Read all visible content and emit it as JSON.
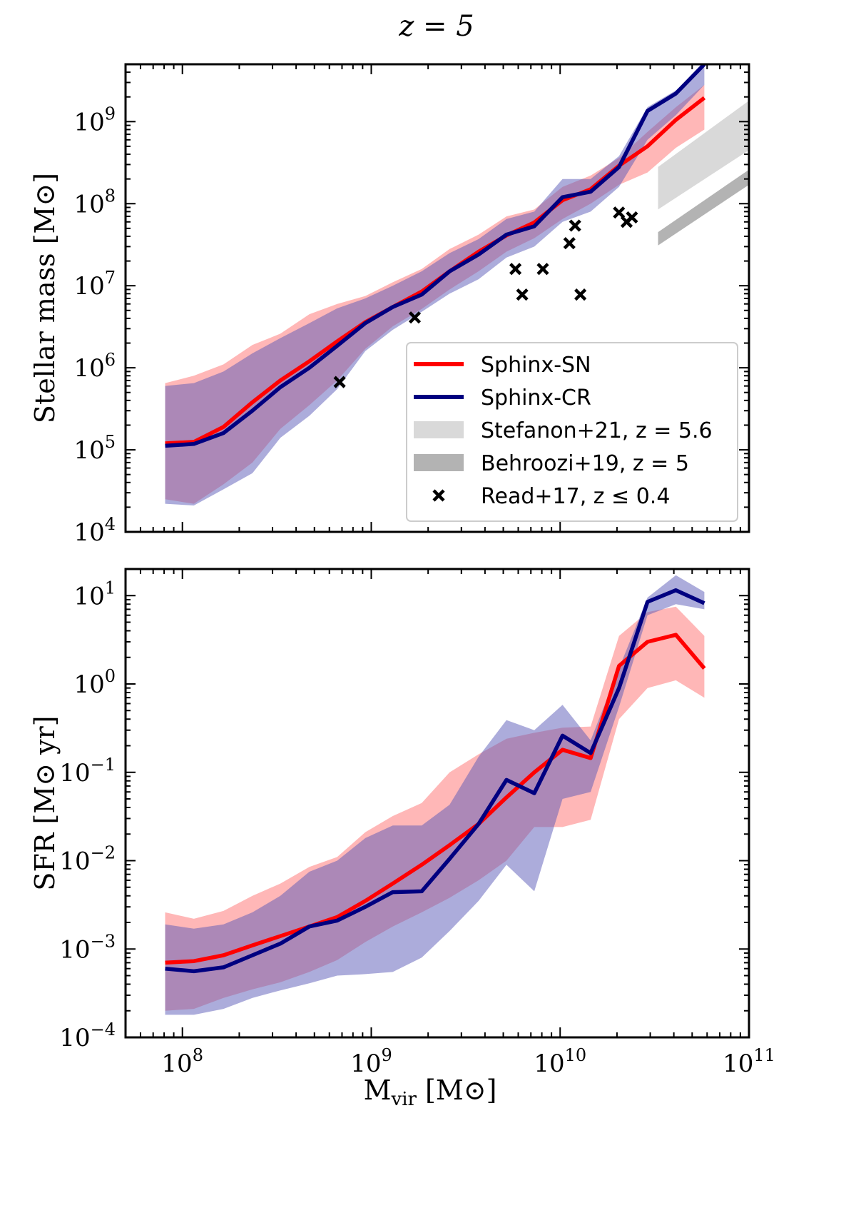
{
  "figure_title": "z = 5",
  "colors": {
    "sn": "#ff0000",
    "cr": "#000080",
    "sn_band": "#ff6f6f",
    "cr_band": "#5a5ab8",
    "stefanon": "#d9d9d9",
    "behroozi": "#b3b3b3",
    "read": "#000000"
  },
  "chart_data": [
    {
      "type": "line",
      "id": "stellar",
      "ylabel": "Stellar mass [M⊙]",
      "xlabel": "",
      "xscale": "log",
      "yscale": "log",
      "xlim": [
        50000000.0,
        100000000000.0
      ],
      "ylim": [
        10000.0,
        5000000000.0
      ],
      "xticks": [
        {
          "v": 100000000.0,
          "label": "10^8"
        },
        {
          "v": 1000000000.0,
          "label": "10^9"
        },
        {
          "v": 10000000000.0,
          "label": "10^10"
        },
        {
          "v": 100000000000.0,
          "label": "10^11"
        }
      ],
      "yticks": [
        {
          "v": 10000.0,
          "label": "10^4"
        },
        {
          "v": 100000.0,
          "label": "10^5"
        },
        {
          "v": 1000000.0,
          "label": "10^6"
        },
        {
          "v": 10000000.0,
          "label": "10^7"
        },
        {
          "v": 100000000.0,
          "label": "10^8"
        },
        {
          "v": 1000000000.0,
          "label": "10^9"
        }
      ],
      "series": [
        {
          "name": "Sphinx-SN",
          "color_key": "sn",
          "band_key": "sn_band",
          "x": [
            81000000.0,
            115000000.0,
            165000000.0,
            235000000.0,
            330000000.0,
            470000000.0,
            660000000.0,
            930000000.0,
            1300000000.0,
            1850000000.0,
            2600000000.0,
            3700000000.0,
            5200000000.0,
            7300000000.0,
            10300000000.0,
            14500000000.0,
            20500000000.0,
            29000000000.0,
            41000000000.0,
            58000000000.0
          ],
          "y": [
            120000.0,
            125000.0,
            190000.0,
            380000.0,
            700000.0,
            1200000.0,
            2100000.0,
            3600000.0,
            5500000.0,
            8500000.0,
            15000000.0,
            26000000.0,
            41000000.0,
            59000000.0,
            110000000.0,
            150000000.0,
            290000000.0,
            500000000.0,
            1050000000.0,
            1950000000.0
          ],
          "lo": [
            25000.0,
            22000.0,
            38000.0,
            70000.0,
            180000.0,
            350000.0,
            700000.0,
            1700000.0,
            3200000.0,
            5200000.0,
            9000000.0,
            15000000.0,
            26000000.0,
            38000000.0,
            65000000.0,
            100000000.0,
            170000000.0,
            240000000.0,
            480000000.0,
            800000000.0
          ],
          "hi": [
            650000.0,
            800000.0,
            1100000.0,
            1900000.0,
            2600000.0,
            4500000.0,
            6000000.0,
            7500000.0,
            11000000.0,
            16000000.0,
            28000000.0,
            42000000.0,
            70000000.0,
            85000000.0,
            160000000.0,
            220000000.0,
            360000000.0,
            750000000.0,
            1500000000.0,
            2800000000.0
          ]
        },
        {
          "name": "Sphinx-CR",
          "color_key": "cr",
          "band_key": "cr_band",
          "x": [
            81000000.0,
            115000000.0,
            165000000.0,
            235000000.0,
            330000000.0,
            470000000.0,
            660000000.0,
            930000000.0,
            1300000000.0,
            1850000000.0,
            2600000000.0,
            3700000000.0,
            5200000000.0,
            7300000000.0,
            10300000000.0,
            14500000000.0,
            20500000000.0,
            29000000000.0,
            41000000000.0,
            58000000000.0
          ],
          "y": [
            112000.0,
            118000.0,
            160000.0,
            300000.0,
            580000.0,
            1000000.0,
            1850000.0,
            3500000.0,
            5500000.0,
            7800000.0,
            15000000.0,
            24000000.0,
            42000000.0,
            53000000.0,
            120000000.0,
            140000000.0,
            280000000.0,
            1350000000.0,
            2200000000.0,
            5000000000.0
          ],
          "lo": [
            22000.0,
            21000.0,
            33000.0,
            52000.0,
            140000.0,
            260000.0,
            550000.0,
            1600000.0,
            2900000.0,
            4800000.0,
            8000000.0,
            12000000.0,
            22000000.0,
            30000000.0,
            60000000.0,
            80000000.0,
            160000000.0,
            600000000.0,
            1200000000.0,
            2800000000.0
          ],
          "hi": [
            600000.0,
            650000.0,
            900000.0,
            1500000.0,
            2300000.0,
            3500000.0,
            5300000.0,
            7000000.0,
            10000000.0,
            15000000.0,
            25000000.0,
            37000000.0,
            65000000.0,
            80000000.0,
            200000000.0,
            200000000.0,
            380000000.0,
            1500000000.0,
            2400000000.0,
            5000000000.0
          ]
        }
      ],
      "bands": [
        {
          "name": "Stefanon+21, z = 5.6",
          "color_key": "stefanon",
          "x": [
            33000000000.0,
            100000000000.0
          ],
          "lo": [
            85000000.0,
            450000000.0
          ],
          "hi": [
            280000000.0,
            1800000000.0
          ]
        },
        {
          "name": "Behroozi+19, z = 5",
          "color_key": "behroozi",
          "x": [
            33000000000.0,
            100000000000.0
          ],
          "lo": [
            31000000.0,
            170000000.0
          ],
          "hi": [
            45000000.0,
            260000000.0
          ]
        }
      ],
      "scatter": {
        "name": "Read+17, z ≤ 0.4",
        "color_key": "read",
        "x": [
          680000000.0,
          1700000000.0,
          5800000000.0,
          6300000000.0,
          8100000000.0,
          11200000000.0,
          12000000000.0,
          12800000000.0,
          20500000000.0,
          22500000000.0,
          24000000000.0
        ],
        "y": [
          670000.0,
          4100000.0,
          16000000.0,
          7800000.0,
          16000000.0,
          33000000.0,
          54000000.0,
          7800000.0,
          78000000.0,
          60000000.0,
          68000000.0
        ]
      },
      "legend": {
        "position": "lower-right",
        "entries": [
          {
            "label": "Sphinx-SN",
            "kind": "line",
            "color_key": "sn"
          },
          {
            "label": "Sphinx-CR",
            "kind": "line",
            "color_key": "cr"
          },
          {
            "label": "Stefanon+21, z = 5.6",
            "kind": "patch",
            "color_key": "stefanon"
          },
          {
            "label": "Behroozi+19, z = 5",
            "kind": "patch",
            "color_key": "behroozi"
          },
          {
            "label": "Read+17, z ≤ 0.4",
            "kind": "marker",
            "color_key": "read"
          }
        ]
      }
    },
    {
      "type": "line",
      "id": "sfr",
      "ylabel": "SFR [M⊙ yr]",
      "xlabel": "M_vir [M⊙]",
      "xscale": "log",
      "yscale": "log",
      "xlim": [
        50000000.0,
        100000000000.0
      ],
      "ylim": [
        0.0001,
        20
      ],
      "xticks": [
        {
          "v": 100000000.0,
          "label": "10^8"
        },
        {
          "v": 1000000000.0,
          "label": "10^9"
        },
        {
          "v": 10000000000.0,
          "label": "10^10"
        },
        {
          "v": 100000000000.0,
          "label": "10^11"
        }
      ],
      "yticks": [
        {
          "v": 0.0001,
          "label": "10^-4"
        },
        {
          "v": 0.001,
          "label": "10^-3"
        },
        {
          "v": 0.01,
          "label": "10^-2"
        },
        {
          "v": 0.1,
          "label": "10^-1"
        },
        {
          "v": 1,
          "label": "10^0"
        },
        {
          "v": 10,
          "label": "10^1"
        }
      ],
      "series": [
        {
          "name": "Sphinx-SN",
          "color_key": "sn",
          "band_key": "sn_band",
          "x": [
            81000000.0,
            115000000.0,
            165000000.0,
            235000000.0,
            330000000.0,
            470000000.0,
            660000000.0,
            930000000.0,
            1300000000.0,
            1850000000.0,
            2600000000.0,
            3700000000.0,
            5200000000.0,
            7300000000.0,
            10300000000.0,
            14500000000.0,
            20500000000.0,
            29000000000.0,
            41000000000.0,
            58000000000.0
          ],
          "y": [
            0.0007,
            0.00073,
            0.00085,
            0.0011,
            0.0014,
            0.0018,
            0.0023,
            0.0035,
            0.0055,
            0.009,
            0.015,
            0.026,
            0.052,
            0.1,
            0.18,
            0.145,
            1.6,
            3,
            3.6,
            1.5
          ],
          "lo": [
            0.0002,
            0.00021,
            0.00028,
            0.00035,
            0.00042,
            0.00055,
            0.00075,
            0.0012,
            0.0018,
            0.0026,
            0.0038,
            0.006,
            0.01,
            0.024,
            0.024,
            0.029,
            0.4,
            0.9,
            1.1,
            0.7
          ],
          "hi": [
            0.0026,
            0.0022,
            0.0027,
            0.004,
            0.0055,
            0.0085,
            0.011,
            0.021,
            0.032,
            0.045,
            0.1,
            0.16,
            0.24,
            0.28,
            0.32,
            0.33,
            3.5,
            6.5,
            7.5,
            3.5
          ]
        },
        {
          "name": "Sphinx-CR",
          "color_key": "cr",
          "band_key": "cr_band",
          "x": [
            81000000.0,
            115000000.0,
            165000000.0,
            235000000.0,
            330000000.0,
            470000000.0,
            660000000.0,
            930000000.0,
            1300000000.0,
            1850000000.0,
            2600000000.0,
            3700000000.0,
            5200000000.0,
            7300000000.0,
            10300000000.0,
            14500000000.0,
            20500000000.0,
            29000000000.0,
            41000000000.0,
            58000000000.0
          ],
          "y": [
            0.0006,
            0.00056,
            0.00062,
            0.00085,
            0.00115,
            0.0018,
            0.0021,
            0.003,
            0.0044,
            0.0045,
            0.0105,
            0.026,
            0.082,
            0.058,
            0.26,
            0.165,
            0.9,
            8.5,
            11.5,
            8.2
          ],
          "lo": [
            0.00018,
            0.00018,
            0.00021,
            0.00028,
            0.00034,
            0.00041,
            0.0005,
            0.00052,
            0.00055,
            0.0008,
            0.0016,
            0.0035,
            0.009,
            0.0045,
            0.05,
            0.06,
            0.55,
            6,
            8,
            7
          ],
          "hi": [
            0.0019,
            0.0017,
            0.0019,
            0.0026,
            0.004,
            0.0075,
            0.01,
            0.018,
            0.025,
            0.025,
            0.043,
            0.15,
            0.39,
            0.3,
            0.58,
            0.23,
            1.5,
            9.5,
            17,
            11
          ]
        }
      ]
    }
  ]
}
